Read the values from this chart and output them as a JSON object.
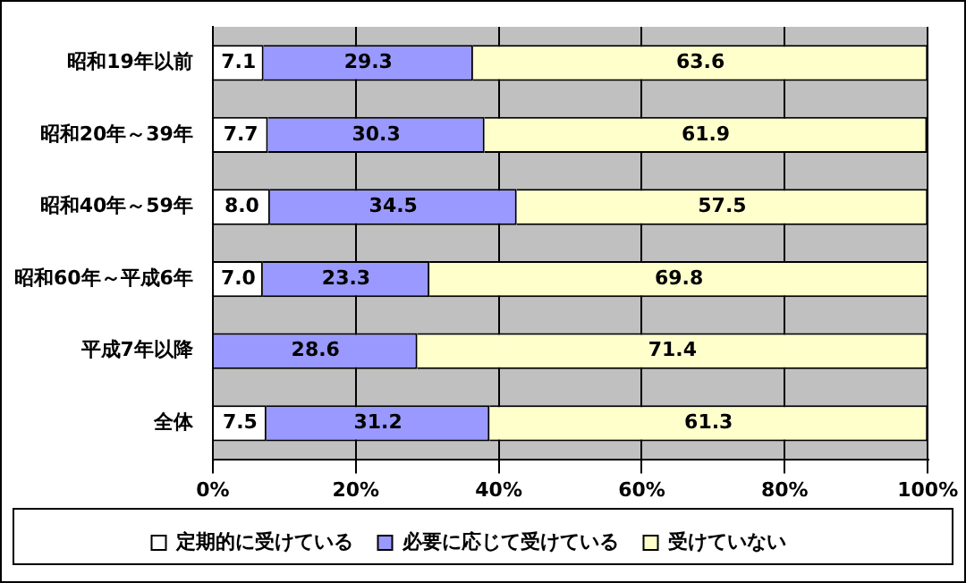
{
  "chart_data": {
    "type": "bar",
    "orientation": "horizontal",
    "stacked": true,
    "categories": [
      "昭和19年以前",
      "昭和20年～39年",
      "昭和40年～59年",
      "昭和60年～平成6年",
      "平成7年以降",
      "全体"
    ],
    "series": [
      {
        "name": "定期的に受けている",
        "color": "#ffffff",
        "values": [
          7.1,
          7.7,
          8.0,
          7.0,
          null,
          7.5
        ],
        "value_labels": [
          "7.1",
          "7.7",
          "8.0",
          "7.0",
          null,
          "7.5"
        ]
      },
      {
        "name": "必要に応じて受けている",
        "color": "#9999ff",
        "values": [
          29.3,
          30.3,
          34.5,
          23.3,
          28.6,
          31.2
        ],
        "value_labels": [
          "29.3",
          "30.3",
          "34.5",
          "23.3",
          "28.6",
          "31.2"
        ]
      },
      {
        "name": "受けていない",
        "color": "#ffffcc",
        "values": [
          63.6,
          61.9,
          57.5,
          69.8,
          71.4,
          61.3
        ],
        "value_labels": [
          "63.6",
          "61.9",
          "57.5",
          "69.8",
          "71.4",
          "61.3"
        ]
      }
    ],
    "xlim": [
      0,
      100.1
    ],
    "xticks": [
      {
        "value": 0,
        "label": "0%"
      },
      {
        "value": 20,
        "label": "20%"
      },
      {
        "value": 40,
        "label": "40%"
      },
      {
        "value": 60,
        "label": "60%"
      },
      {
        "value": 80,
        "label": "80%"
      },
      {
        "value": 100,
        "label": "100%"
      }
    ],
    "grid": "x",
    "legend": "bottom"
  }
}
